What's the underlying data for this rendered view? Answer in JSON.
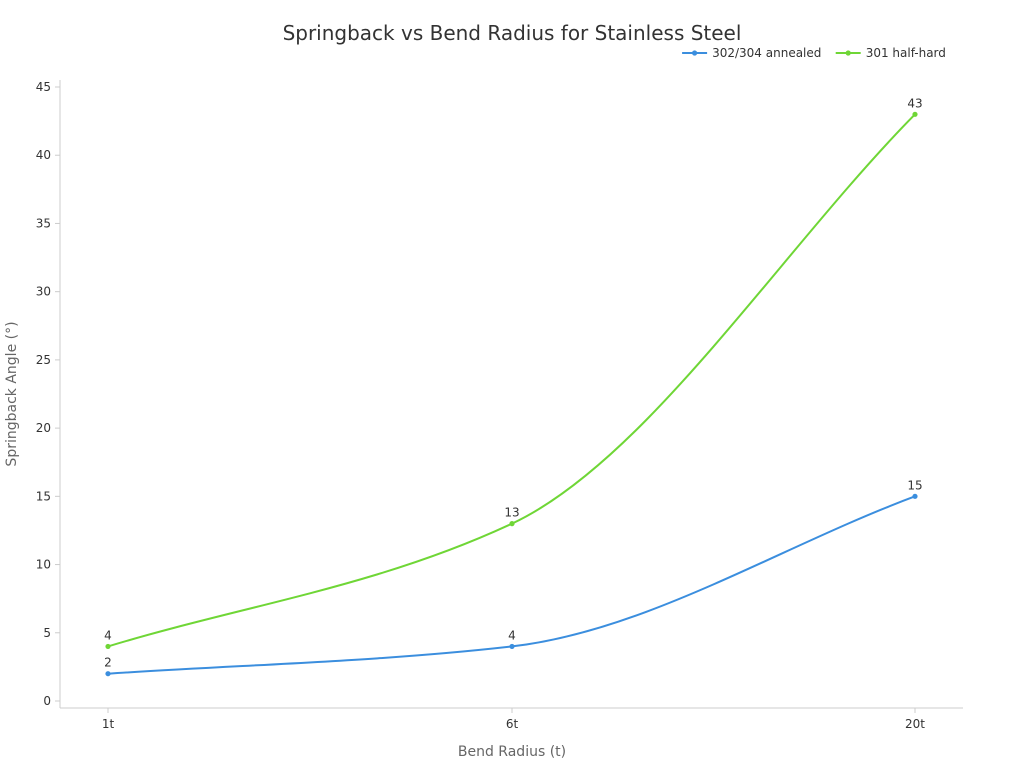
{
  "chart_data": {
    "type": "line",
    "title": "Springback vs Bend Radius for Stainless Steel",
    "xlabel": "Bend Radius (t)",
    "ylabel": "Springback Angle (°)",
    "categories": [
      "1t",
      "6t",
      "20t"
    ],
    "ylim": [
      0,
      45
    ],
    "yticks": [
      0,
      5,
      10,
      15,
      20,
      25,
      30,
      35,
      40,
      45
    ],
    "grid": false,
    "legend_position": "top-right",
    "smooth": true,
    "series": [
      {
        "name": "302/304 annealed",
        "values": [
          2,
          4,
          15
        ],
        "color": "#3b8ede"
      },
      {
        "name": "301 half-hard",
        "values": [
          4,
          13,
          43
        ],
        "color": "#6fd636"
      }
    ]
  }
}
